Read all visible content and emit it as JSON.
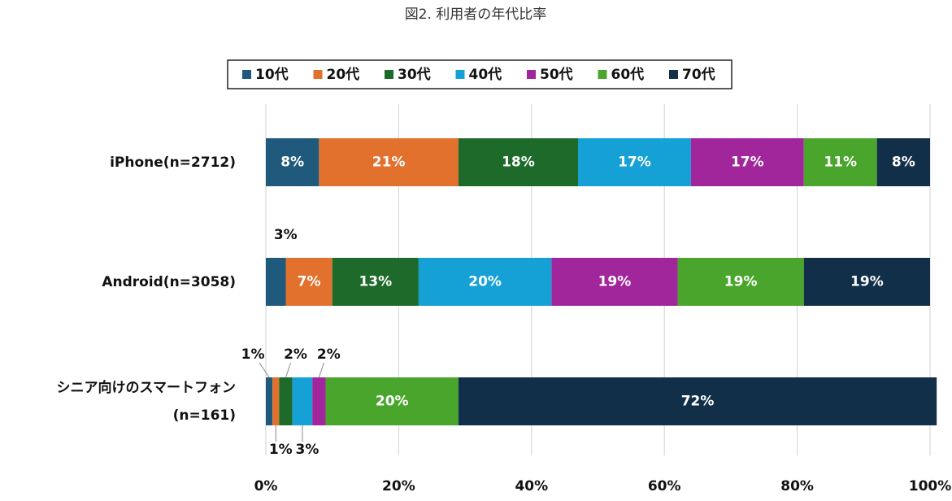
{
  "chart_data": {
    "type": "stacked_barh",
    "title": "図2. 利用者の年代比率",
    "categories": [
      "iPhone(n=2712)",
      "Android(n=3058)",
      "シニア向けのスマートフォン\n(n=161)"
    ],
    "series": [
      {
        "name": "10代",
        "color": "#1f5a7c",
        "values": [
          8,
          3,
          1
        ],
        "value_labels": [
          "8%",
          "3%",
          "1%"
        ]
      },
      {
        "name": "20代",
        "color": "#e2712e",
        "values": [
          21,
          7,
          1
        ],
        "value_labels": [
          "21%",
          "7%",
          "1%"
        ]
      },
      {
        "name": "30代",
        "color": "#1d6a2b",
        "values": [
          18,
          13,
          2
        ],
        "value_labels": [
          "18%",
          "13%",
          "2%"
        ]
      },
      {
        "name": "40代",
        "color": "#16a1d6",
        "values": [
          17,
          20,
          3
        ],
        "value_labels": [
          "17%",
          "20%",
          "3%"
        ]
      },
      {
        "name": "50代",
        "color": "#a1259b",
        "values": [
          17,
          19,
          2
        ],
        "value_labels": [
          "17%",
          "19%",
          "2%"
        ]
      },
      {
        "name": "60代",
        "color": "#4aa52c",
        "values": [
          11,
          19,
          20
        ],
        "value_labels": [
          "11%",
          "19%",
          "20%"
        ]
      },
      {
        "name": "70代",
        "color": "#112f48",
        "values": [
          8,
          19,
          72
        ],
        "value_labels": [
          "8%",
          "19%",
          "72%"
        ]
      }
    ],
    "xlim": [
      0,
      100
    ],
    "xticks": [
      {
        "value": 0,
        "label": "0%"
      },
      {
        "value": 20,
        "label": "20%"
      },
      {
        "value": 40,
        "label": "40%"
      },
      {
        "value": 60,
        "label": "60%"
      },
      {
        "value": 80,
        "label": "80%"
      },
      {
        "value": 100,
        "label": "100%"
      }
    ],
    "grid": true,
    "legend": "top"
  }
}
